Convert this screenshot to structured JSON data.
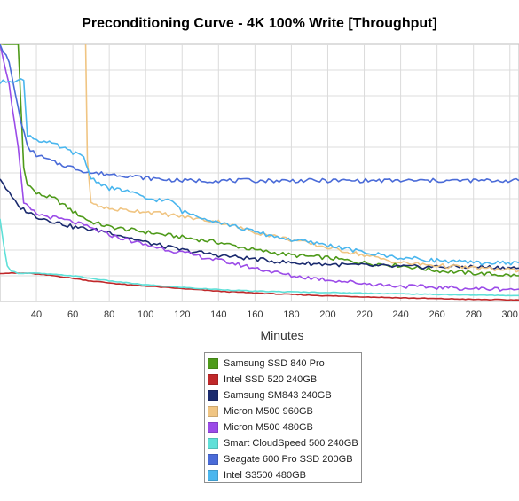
{
  "chart_data": {
    "type": "line",
    "title": "Preconditioning Curve - 4K 100% Write [Throughput]",
    "xlabel": "Minutes",
    "ylabel": "",
    "xlim": [
      20,
      305
    ],
    "ylim": [
      0,
      100
    ],
    "xticks": [
      40,
      60,
      80,
      100,
      120,
      140,
      160,
      180,
      200,
      220,
      240,
      260,
      280,
      300
    ],
    "yticks": [
      10,
      20,
      30,
      40,
      50,
      60,
      70,
      80,
      90
    ],
    "grid": true,
    "legend_position": "bottom-center",
    "series": [
      {
        "name": "Samsung SSD 840 Pro",
        "color": "#4e9a1a",
        "x": [
          20,
          27,
          30,
          33,
          35,
          40,
          50,
          60,
          70,
          80,
          100,
          120,
          140,
          160,
          180,
          200,
          220,
          240,
          260,
          280,
          305
        ],
        "y": [
          100,
          100,
          100,
          52,
          46,
          42,
          40,
          35,
          31,
          29,
          27,
          25,
          23,
          20,
          18,
          17,
          15,
          14,
          12,
          11,
          10
        ]
      },
      {
        "name": "Intel SSD 520 240GB",
        "color": "#c0282a",
        "x": [
          20,
          28,
          35,
          50,
          70,
          90,
          110,
          140,
          170,
          200,
          240,
          280,
          305
        ],
        "y": [
          11,
          11,
          11,
          10,
          8,
          6.5,
          5.5,
          4,
          3,
          2.2,
          1.4,
          0.8,
          0.6
        ]
      },
      {
        "name": "Samsung SM843 240GB",
        "color": "#1a2a6e",
        "x": [
          20,
          25,
          30,
          40,
          50,
          60,
          70,
          80,
          100,
          120,
          140,
          160,
          180,
          200,
          220,
          240,
          260,
          280,
          305
        ],
        "y": [
          48,
          42,
          37,
          33,
          31,
          29,
          28,
          27,
          23,
          20,
          18,
          16.5,
          15,
          14.5,
          14,
          13.5,
          13.5,
          13.5,
          13
        ]
      },
      {
        "name": "Micron M500 960GB",
        "color": "#f0c583",
        "x": [
          20,
          28,
          35,
          40,
          50,
          60,
          64,
          67,
          68,
          70,
          80,
          100,
          120,
          140,
          160,
          180,
          200,
          220,
          240,
          260,
          280,
          305
        ],
        "y": [
          100,
          101,
          101,
          101,
          101,
          101,
          101,
          101,
          55,
          38,
          36,
          35,
          33,
          31,
          27,
          24,
          21,
          18,
          15,
          14,
          13,
          12
        ]
      },
      {
        "name": "Micron M500 480GB",
        "color": "#9b4be8",
        "x": [
          20,
          25,
          28,
          30,
          33,
          40,
          60,
          80,
          100,
          120,
          140,
          160,
          180,
          200,
          220,
          240,
          260,
          280,
          305
        ],
        "y": [
          100,
          84,
          70,
          60,
          38,
          34,
          31,
          26,
          22,
          19,
          16,
          13,
          10,
          8.5,
          7,
          6,
          5.5,
          5,
          4.8
        ]
      },
      {
        "name": "Smart CloudSpeed 500 240GB",
        "color": "#5fe0d8",
        "x": [
          20,
          22,
          24,
          26,
          28,
          30,
          40,
          60,
          80,
          100,
          130,
          160,
          200,
          240,
          280,
          305
        ],
        "y": [
          32,
          22,
          14,
          12,
          11.5,
          11,
          11,
          10,
          8,
          6.5,
          5,
          4,
          3.5,
          3,
          2.5,
          2.3
        ]
      },
      {
        "name": "Seagate 600 Pro SSD 200GB",
        "color": "#4a6bd8",
        "x": [
          20,
          25,
          30,
          35,
          40,
          50,
          60,
          70,
          80,
          90,
          100,
          110,
          120,
          140,
          160,
          200,
          240,
          280,
          305
        ],
        "y": [
          100,
          93,
          75,
          60,
          57,
          54,
          52,
          50,
          49.5,
          49,
          48,
          47.5,
          47,
          47,
          47,
          47,
          47,
          47,
          47
        ]
      },
      {
        "name": "Intel S3500 480GB",
        "color": "#4ab6ee",
        "x": [
          20,
          25,
          28,
          30,
          33,
          35,
          40,
          50,
          60,
          66,
          70,
          80,
          90,
          100,
          115,
          120,
          140,
          160,
          180,
          200,
          220,
          240,
          260,
          280,
          305
        ],
        "y": [
          85,
          86,
          86,
          86,
          86,
          65,
          63,
          61,
          58,
          56,
          48,
          44,
          43,
          40,
          39,
          35,
          31,
          27,
          24,
          22,
          19,
          17,
          16,
          15,
          15
        ]
      }
    ]
  }
}
